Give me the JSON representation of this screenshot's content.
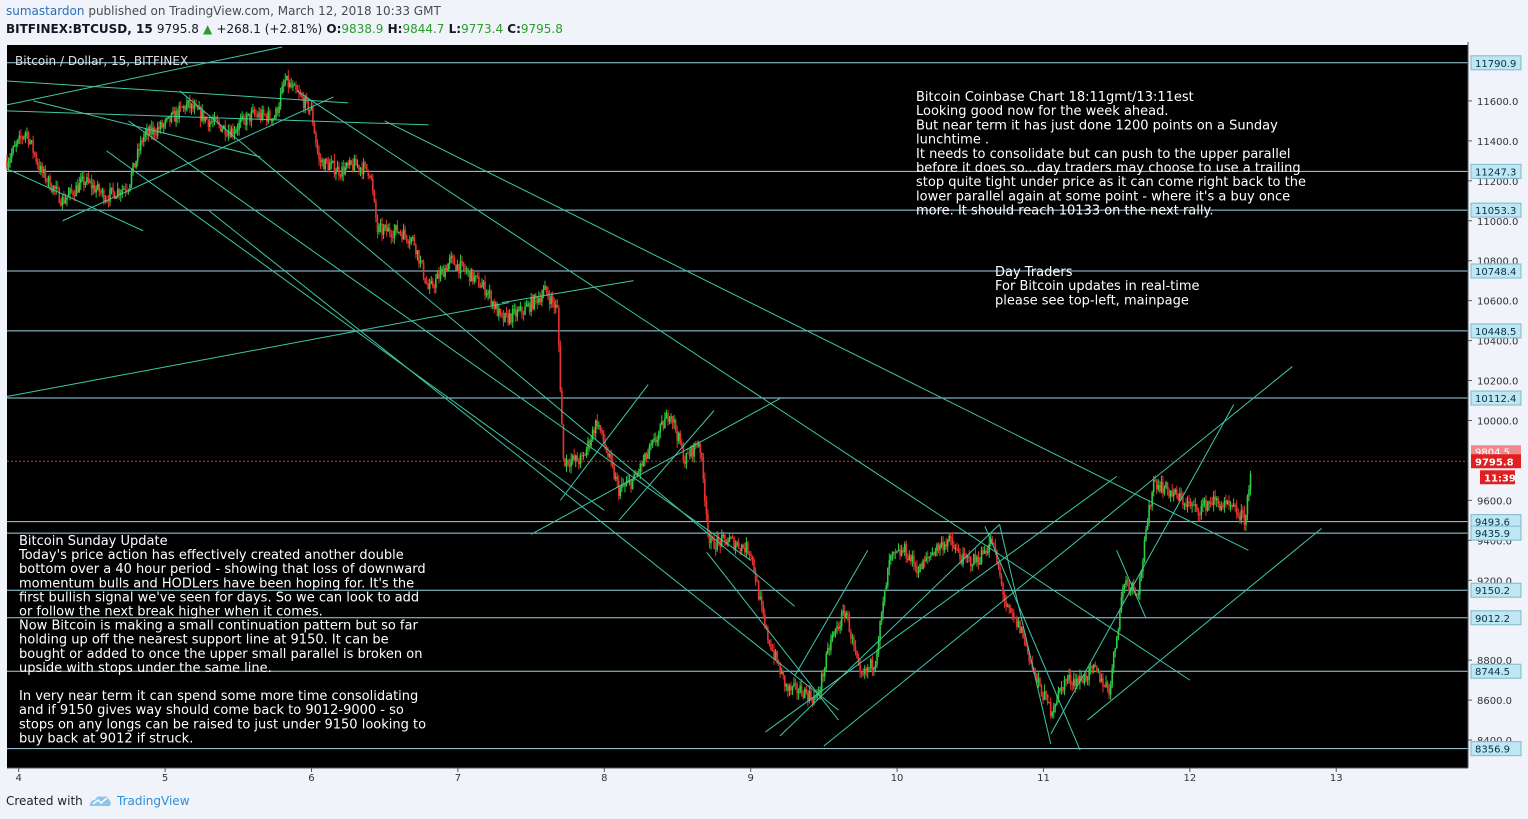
{
  "header": {
    "author": "sumastardon",
    "published": "published on TradingView.com, March 12, 2018 10:33 GMT",
    "symbol": "BITFINEX:BTCUSD, 15",
    "last": "9795.8",
    "change": "+268.1 (+2.81%)",
    "o_label": "O:",
    "o": "9838.9",
    "h_label": "H:",
    "h": "9844.7",
    "l_label": "L:",
    "l": "9773.4",
    "c_label": "C:",
    "c": "9795.8"
  },
  "footer": {
    "created": "Created with",
    "brand": "TradingView"
  },
  "colors": {
    "background": "#000000",
    "candle_up": "#2ecc40",
    "candle_down": "#e8322f",
    "trendline": "#3fc7a6",
    "hline": "#9ed4e8",
    "price_line": "#e83030",
    "axis_bg": "#f0f3fa"
  },
  "chart_data": {
    "type": "candlestick",
    "title": "Bitcoin / Dollar, 15, BITFINEX",
    "ylim": [
      8260,
      11880
    ],
    "xlim": [
      3.92,
      13.9
    ],
    "x_ticks": [
      "4",
      "5",
      "6",
      "7",
      "8",
      "9",
      "10",
      "11",
      "12",
      "13"
    ],
    "y_ticks": [
      "11600.0",
      "11400.0",
      "11200.0",
      "11000.0",
      "10800.0",
      "10600.0",
      "10400.0",
      "10200.0",
      "10000.0",
      "9600.0",
      "9400.0",
      "9200.0",
      "8800.0",
      "8600.0",
      "8400.0"
    ],
    "levels": [
      11790.9,
      11247.3,
      11053.3,
      10748.4,
      10448.5,
      10112.4,
      9493.6,
      9435.9,
      9150.2,
      9012.2,
      8744.5,
      8356.9
    ],
    "level_labels": [
      "11790.9",
      "11247.3",
      "11053.3",
      "10748.4",
      "10448.5",
      "10112.4",
      "9493.6",
      "9435.9",
      "9150.2",
      "9012.2",
      "8744.5",
      "8356.9"
    ],
    "current_price": 9795.8,
    "current_label": "9795.8",
    "countdown": "11:39",
    "prev_label": "9804.5",
    "path": [
      [
        3.92,
        11300
      ],
      [
        4.05,
        11450
      ],
      [
        4.15,
        11250
      ],
      [
        4.3,
        11100
      ],
      [
        4.45,
        11200
      ],
      [
        4.6,
        11120
      ],
      [
        4.75,
        11180
      ],
      [
        4.85,
        11420
      ],
      [
        5.0,
        11480
      ],
      [
        5.15,
        11580
      ],
      [
        5.3,
        11500
      ],
      [
        5.45,
        11450
      ],
      [
        5.6,
        11530
      ],
      [
        5.75,
        11520
      ],
      [
        5.82,
        11700
      ],
      [
        5.92,
        11620
      ],
      [
        6.0,
        11550
      ],
      [
        6.05,
        11300
      ],
      [
        6.2,
        11250
      ],
      [
        6.3,
        11280
      ],
      [
        6.4,
        11250
      ],
      [
        6.45,
        10950
      ],
      [
        6.6,
        10950
      ],
      [
        6.7,
        10900
      ],
      [
        6.8,
        10650
      ],
      [
        6.95,
        10800
      ],
      [
        7.05,
        10750
      ],
      [
        7.2,
        10650
      ],
      [
        7.3,
        10500
      ],
      [
        7.45,
        10550
      ],
      [
        7.6,
        10650
      ],
      [
        7.68,
        10550
      ],
      [
        7.72,
        9800
      ],
      [
        7.85,
        9800
      ],
      [
        7.95,
        10000
      ],
      [
        8.1,
        9650
      ],
      [
        8.2,
        9700
      ],
      [
        8.35,
        9900
      ],
      [
        8.45,
        10050
      ],
      [
        8.55,
        9800
      ],
      [
        8.65,
        9900
      ],
      [
        8.72,
        9380
      ],
      [
        8.85,
        9400
      ],
      [
        9.0,
        9350
      ],
      [
        9.1,
        8950
      ],
      [
        9.25,
        8650
      ],
      [
        9.35,
        8650
      ],
      [
        9.45,
        8600
      ],
      [
        9.55,
        8900
      ],
      [
        9.65,
        9050
      ],
      [
        9.75,
        8700
      ],
      [
        9.85,
        8800
      ],
      [
        9.95,
        9300
      ],
      [
        10.05,
        9350
      ],
      [
        10.15,
        9250
      ],
      [
        10.25,
        9350
      ],
      [
        10.35,
        9400
      ],
      [
        10.45,
        9300
      ],
      [
        10.55,
        9300
      ],
      [
        10.65,
        9400
      ],
      [
        10.75,
        9050
      ],
      [
        10.85,
        8950
      ],
      [
        10.95,
        8700
      ],
      [
        11.05,
        8550
      ],
      [
        11.15,
        8700
      ],
      [
        11.25,
        8700
      ],
      [
        11.35,
        8750
      ],
      [
        11.45,
        8650
      ],
      [
        11.55,
        9200
      ],
      [
        11.65,
        9150
      ],
      [
        11.75,
        9700
      ],
      [
        11.85,
        9650
      ],
      [
        11.95,
        9600
      ],
      [
        12.05,
        9550
      ],
      [
        12.15,
        9600
      ],
      [
        12.3,
        9550
      ],
      [
        12.38,
        9500
      ],
      [
        12.42,
        9800
      ]
    ],
    "trendlines": [
      [
        3.92,
        11260,
        4.85,
        10950
      ],
      [
        4.1,
        11600,
        5.65,
        11320
      ],
      [
        3.92,
        11580,
        5.8,
        11870
      ],
      [
        3.92,
        11700,
        6.25,
        11590
      ],
      [
        3.92,
        11550,
        6.8,
        11480
      ],
      [
        4.3,
        11000,
        6.15,
        11620
      ],
      [
        3.92,
        10120,
        7.35,
        10590
      ],
      [
        7.3,
        10590,
        8.2,
        10700
      ],
      [
        4.75,
        11500,
        9.0,
        9300
      ],
      [
        5.9,
        11650,
        12.0,
        8700
      ],
      [
        6.5,
        11500,
        12.4,
        9350
      ],
      [
        5.3,
        11050,
        9.6,
        8550
      ],
      [
        4.6,
        11350,
        8.0,
        9550
      ],
      [
        7.5,
        9430,
        9.2,
        10110
      ],
      [
        5.1,
        11650,
        9.3,
        9070
      ],
      [
        9.2,
        8420,
        10.7,
        9480
      ],
      [
        9.5,
        8370,
        12.7,
        10270
      ],
      [
        9.1,
        8440,
        11.5,
        9720
      ],
      [
        10.7,
        9480,
        11.05,
        8380
      ],
      [
        11.05,
        8430,
        12.3,
        10080
      ],
      [
        11.3,
        8500,
        12.9,
        9460
      ],
      [
        11.5,
        9350,
        11.7,
        9010
      ],
      [
        7.7,
        9600,
        8.3,
        10180
      ],
      [
        8.1,
        9500,
        8.75,
        10050
      ],
      [
        8.7,
        9340,
        9.6,
        8500
      ],
      [
        9.3,
        8720,
        9.8,
        9350
      ],
      [
        10.6,
        9470,
        11.25,
        8350
      ]
    ]
  },
  "annotations": {
    "coinbase": [
      "Bitcoin Coinbase Chart 18:11gmt/13:11est",
      "Looking good now for the week ahead.",
      "But near term it has just done 1200 points on a Sunday",
      "lunchtime .",
      "It needs to consolidate but can push to the upper parallel",
      "before it does so...day traders may choose to use a trailing",
      "stop quite tight under price as it can come right back to the",
      "lower parallel again at some point - where it's a buy once",
      "more. It should reach 10133 on the next rally."
    ],
    "daytraders": [
      "Day Traders",
      "For Bitcoin updates in real-time",
      "please see top-left, mainpage"
    ],
    "sunday": [
      "Bitcoin Sunday Update",
      "Today's price action has effectively created another double",
      "bottom over a 40 hour period - showing that loss of downward",
      "momentum bulls and HODLers have been hoping for. It's the",
      "first bullish signal we've seen for days. So we can look to add",
      "or follow the next break higher when it comes.",
      "Now Bitcoin is making a small continuation pattern but so far",
      "holding up off the nearest support line at 9150. It can be",
      "bought or added to once the upper small parallel is broken on",
      "upside with stops under the same line.",
      "",
      "In very near term it can spend some more time consolidating",
      "and if 9150 gives way should come back to 9012-9000 - so",
      "stops on any longs can be raised to just under 9150 looking to",
      "buy back at 9012 if struck."
    ]
  }
}
